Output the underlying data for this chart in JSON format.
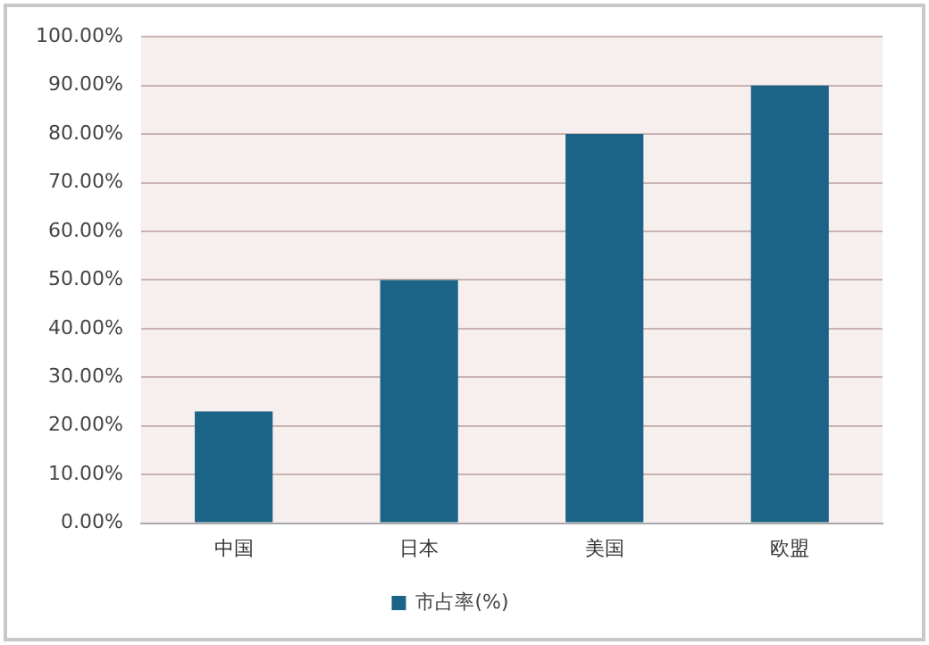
{
  "chart_data": {
    "type": "bar",
    "categories": [
      "中国",
      "日本",
      "美国",
      "欧盟"
    ],
    "series": [
      {
        "name": "市占率(%)",
        "color": "#1b6387",
        "values": [
          23,
          50,
          80,
          90
        ]
      }
    ],
    "ylim": [
      0,
      100
    ],
    "yticks": [
      {
        "value": 0,
        "label": "0.00%"
      },
      {
        "value": 10,
        "label": "10.00%"
      },
      {
        "value": 20,
        "label": "20.00%"
      },
      {
        "value": 30,
        "label": "30.00%"
      },
      {
        "value": 40,
        "label": "40.00%"
      },
      {
        "value": 50,
        "label": "50.00%"
      },
      {
        "value": 60,
        "label": "60.00%"
      },
      {
        "value": 70,
        "label": "70.00%"
      },
      {
        "value": 80,
        "label": "80.00%"
      },
      {
        "value": 90,
        "label": "90.00%"
      },
      {
        "value": 100,
        "label": "100.00%"
      }
    ],
    "grid": "y",
    "legend": "bottom"
  }
}
